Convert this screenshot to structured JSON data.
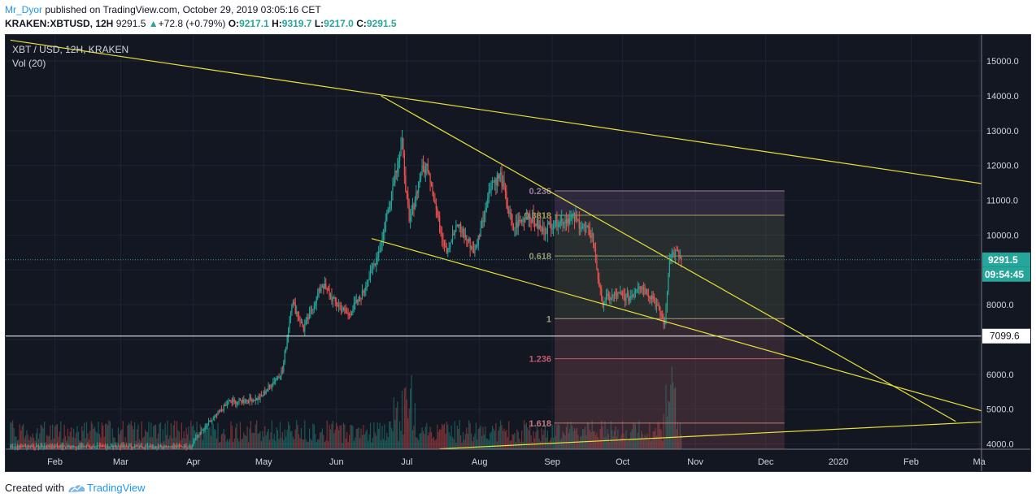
{
  "header": {
    "user": "Mr_Dyor",
    "published_text": "published on TradingView.com, October 29, 2019 03:05:16 CET",
    "symbol": "KRAKEN:XBTUSD, 12H",
    "last_price": "9291.5",
    "change": "+72.8 (+0.79%)",
    "open_label": "O:",
    "open": "9217.1",
    "high_label": "H:",
    "high": "9319.7",
    "low_label": "L:",
    "low": "9217.0",
    "close_label": "C:",
    "close": "9291.5"
  },
  "footer": {
    "created_with": "Created with",
    "brand": "TradingView"
  },
  "colors": {
    "background": "#131722",
    "up": "#26a69a",
    "down": "#ef5350",
    "trendline": "#e8e13a",
    "price_line": "#26a69a",
    "horizontal_line": "#ffffff"
  },
  "chart_data": {
    "type": "candlestick",
    "title": "XBT / USD, 12H, KRAKEN",
    "indicator": "Vol (20)",
    "y_ticks": [
      4000,
      5000,
      6000,
      7000,
      8000,
      9000,
      10000,
      11000,
      12000,
      13000,
      14000,
      15000
    ],
    "y_tick_labels_shown": [
      "4000.0",
      "5000.0",
      "6000.0",
      "8000.0",
      "9000.0",
      "10000.0",
      "11000.0",
      "12000.0",
      "13000.0",
      "14000.0",
      "15000.0"
    ],
    "ylim": [
      3850,
      15750
    ],
    "x_labels": [
      "Feb",
      "Mar",
      "Apr",
      "May",
      "Jun",
      "Jul",
      "Aug",
      "Sep",
      "Oct",
      "Nov",
      "Dec",
      "2020",
      "Feb",
      "Ma"
    ],
    "x_label_days": [
      21,
      49,
      80,
      110,
      141,
      171,
      202,
      233,
      263,
      294,
      324,
      355,
      386,
      415
    ],
    "xlim_days": [
      0,
      416
    ],
    "price_keypoints": [
      {
        "day": 80,
        "price": 4100
      },
      {
        "day": 95,
        "price": 5200
      },
      {
        "day": 108,
        "price": 5300
      },
      {
        "day": 118,
        "price": 6100
      },
      {
        "day": 122,
        "price": 8100
      },
      {
        "day": 127,
        "price": 7300
      },
      {
        "day": 135,
        "price": 8600
      },
      {
        "day": 140,
        "price": 8100
      },
      {
        "day": 146,
        "price": 7700
      },
      {
        "day": 152,
        "price": 8300
      },
      {
        "day": 160,
        "price": 9700
      },
      {
        "day": 166,
        "price": 11800
      },
      {
        "day": 169,
        "price": 12600
      },
      {
        "day": 172,
        "price": 10300
      },
      {
        "day": 177,
        "price": 11800
      },
      {
        "day": 180,
        "price": 12000
      },
      {
        "day": 185,
        "price": 10200
      },
      {
        "day": 188,
        "price": 9600
      },
      {
        "day": 193,
        "price": 10300
      },
      {
        "day": 200,
        "price": 9500
      },
      {
        "day": 207,
        "price": 11500
      },
      {
        "day": 211,
        "price": 11700
      },
      {
        "day": 216,
        "price": 10200
      },
      {
        "day": 223,
        "price": 10600
      },
      {
        "day": 229,
        "price": 10100
      },
      {
        "day": 234,
        "price": 10400
      },
      {
        "day": 242,
        "price": 10500
      },
      {
        "day": 250,
        "price": 10000
      },
      {
        "day": 254,
        "price": 8100
      },
      {
        "day": 260,
        "price": 8300
      },
      {
        "day": 266,
        "price": 8200
      },
      {
        "day": 270,
        "price": 8600
      },
      {
        "day": 276,
        "price": 8200
      },
      {
        "day": 281,
        "price": 7450
      },
      {
        "day": 283,
        "price": 9400
      },
      {
        "day": 286,
        "price": 9500
      },
      {
        "day": 288,
        "price": 9291.5
      }
    ],
    "current_price": 9291.5,
    "current_price_label": "9291.5",
    "countdown_label": "09:54:45",
    "horizontal_line": {
      "price": 7099.6,
      "label": "7099.6"
    },
    "fibonacci": {
      "levels": [
        {
          "label": "0.236",
          "price": 11270
        },
        {
          "label": "0.3818",
          "price": 10570
        },
        {
          "label": "0.618",
          "price": 9400
        },
        {
          "label": "1",
          "price": 7600
        },
        {
          "label": "1.236",
          "price": 6450
        },
        {
          "label": "1.618",
          "price": 4600
        }
      ],
      "start_day": 234,
      "end_day": 332
    },
    "trendlines": [
      {
        "from": {
          "day": 2,
          "price": 15600
        },
        "to": {
          "day": 416,
          "price": 11480
        }
      },
      {
        "from": {
          "day": 160,
          "price": 14000
        },
        "to": {
          "day": 405,
          "price": 4650
        }
      },
      {
        "from": {
          "day": 156,
          "price": 9900
        },
        "to": {
          "day": 416,
          "price": 4950
        }
      },
      {
        "from": {
          "day": 185,
          "price": 3860
        },
        "to": {
          "day": 416,
          "price": 4630
        }
      }
    ]
  }
}
